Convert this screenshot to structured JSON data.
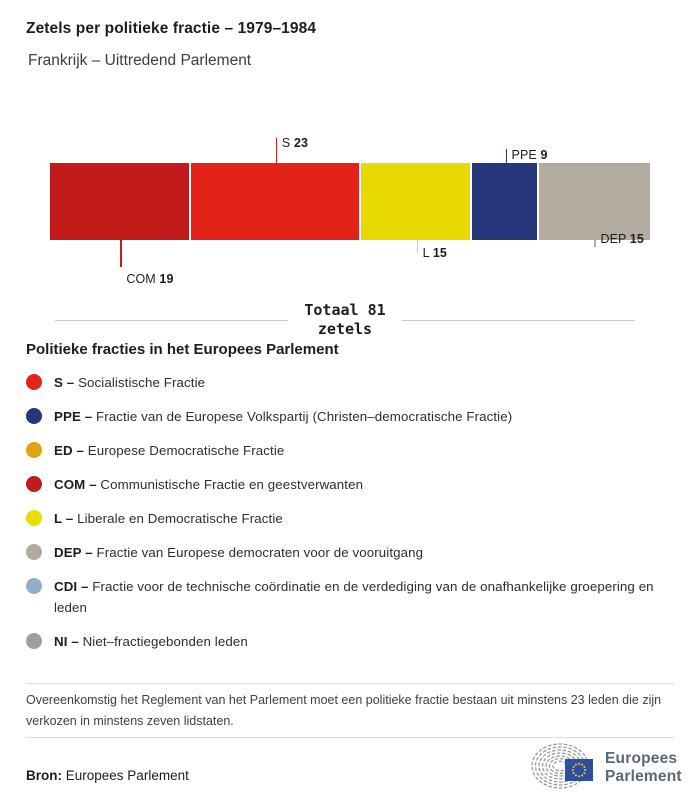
{
  "header": {
    "title": "Zetels per politieke fractie – 1979–1984",
    "subtitle": "Frankrijk – Uittredend Parlement"
  },
  "chart_data": {
    "type": "bar",
    "variant": "stacked-horizontal-proportional",
    "title": "Zetels per politieke fractie – 1979–1984",
    "subtitle": "Frankrijk – Uittredend Parlement",
    "total": 81,
    "total_line1": "Totaal 81",
    "total_line2": "zetels",
    "categories": [
      "COM",
      "S",
      "L",
      "PPE",
      "DEP"
    ],
    "values": [
      19,
      23,
      15,
      9,
      15
    ],
    "colors": [
      "#c11b1c",
      "#e3231a",
      "#e8da00",
      "#28377b",
      "#b2aba0"
    ],
    "callout_sides": [
      "below",
      "above",
      "below",
      "above",
      "below"
    ],
    "legend_position": "bottom",
    "grid": false
  },
  "segments": [
    {
      "abbr": "COM",
      "value": "19",
      "color": "#c11b1c"
    },
    {
      "abbr": "S",
      "value": "23",
      "color": "#e3231a"
    },
    {
      "abbr": "L",
      "value": "15",
      "color": "#e8da00"
    },
    {
      "abbr": "PPE",
      "value": "9",
      "color": "#28377b"
    },
    {
      "abbr": "DEP",
      "value": "15",
      "color": "#b2aba0"
    }
  ],
  "legend": {
    "heading": "Politieke fracties in het Europees Parlement",
    "items": [
      {
        "abbr": "S",
        "sep": "–",
        "label": "Socialistische Fractie",
        "color": "#e3231a"
      },
      {
        "abbr": "PPE",
        "sep": "–",
        "label": "Fractie van de Europese Volkspartij (Christen–democratische Fractie)",
        "color": "#28377b"
      },
      {
        "abbr": "ED",
        "sep": "–",
        "label": "Europese Democratische Fractie",
        "color": "#e2a30d"
      },
      {
        "abbr": "COM",
        "sep": "–",
        "label": "Communistische Fractie en geestverwanten",
        "color": "#c11b1c"
      },
      {
        "abbr": "L",
        "sep": "–",
        "label": "Liberale en Democratische Fractie",
        "color": "#ecdc00"
      },
      {
        "abbr": "DEP",
        "sep": "–",
        "label": "Fractie van Europese democraten voor de vooruitgang",
        "color": "#b2aba0"
      },
      {
        "abbr": "CDI",
        "sep": "–",
        "label": "Fractie voor de technische coördinatie en de verdediging van de onafhankelijke groepering en leden",
        "color": "#8fb0c8"
      },
      {
        "abbr": "NI",
        "sep": "–",
        "label": "Niet–fractiegebonden leden",
        "color": "#9d9e9e"
      }
    ]
  },
  "footnote": "Overeenkomstig het Reglement van het Parlement moet een politieke fractie bestaan uit minstens 23 leden die zijn verkozen in minstens zeven lidstaten.",
  "source": {
    "label": "Bron:",
    "text": "Europees Parlement"
  },
  "logo": {
    "line1": "Europees",
    "line2": "Parlement",
    "arc_color": "#8a959e",
    "flag_color": "#2d4f9e",
    "star_color": "#f7d117",
    "text_color": "#5d6770"
  }
}
